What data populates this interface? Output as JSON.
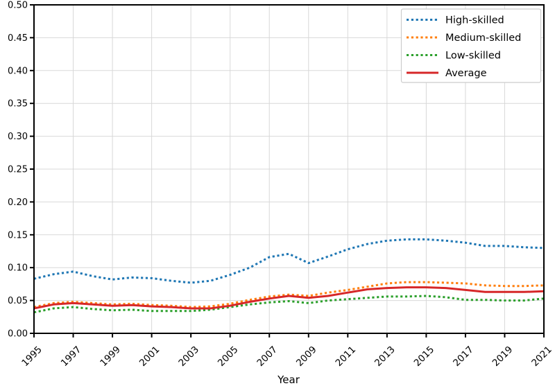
{
  "chart_data": {
    "type": "line",
    "title": "",
    "xlabel": "Year",
    "ylabel": "",
    "xlim": [
      1995,
      2021
    ],
    "ylim": [
      0.0,
      0.5
    ],
    "grid": true,
    "legend_position": "top-right",
    "x_ticks": [
      1995,
      1997,
      1999,
      2001,
      2003,
      2005,
      2007,
      2009,
      2011,
      2013,
      2015,
      2017,
      2019,
      2021
    ],
    "y_ticks": [
      "0.00",
      "0.05",
      "0.10",
      "0.15",
      "0.20",
      "0.25",
      "0.30",
      "0.35",
      "0.40",
      "0.45",
      "0.50"
    ],
    "x": [
      1995,
      1996,
      1997,
      1998,
      1999,
      2000,
      2001,
      2002,
      2003,
      2004,
      2005,
      2006,
      2007,
      2008,
      2009,
      2010,
      2011,
      2012,
      2013,
      2014,
      2015,
      2016,
      2017,
      2018,
      2019,
      2020,
      2021
    ],
    "series": [
      {
        "name": "High-skilled",
        "color": "#1f77b4",
        "style": "dotted",
        "values": [
          0.083,
          0.09,
          0.094,
          0.087,
          0.082,
          0.085,
          0.084,
          0.08,
          0.077,
          0.08,
          0.089,
          0.1,
          0.116,
          0.121,
          0.107,
          0.117,
          0.128,
          0.136,
          0.141,
          0.143,
          0.143,
          0.141,
          0.138,
          0.133,
          0.133,
          0.131,
          0.13
        ]
      },
      {
        "name": "Medium-skilled",
        "color": "#ff7f0e",
        "style": "dotted",
        "values": [
          0.04,
          0.046,
          0.048,
          0.046,
          0.044,
          0.045,
          0.043,
          0.042,
          0.04,
          0.041,
          0.045,
          0.051,
          0.056,
          0.059,
          0.057,
          0.062,
          0.066,
          0.071,
          0.076,
          0.078,
          0.078,
          0.077,
          0.076,
          0.073,
          0.072,
          0.072,
          0.073
        ]
      },
      {
        "name": "Low-skilled",
        "color": "#2ca02c",
        "style": "dotted",
        "values": [
          0.032,
          0.038,
          0.04,
          0.037,
          0.035,
          0.036,
          0.034,
          0.034,
          0.034,
          0.036,
          0.04,
          0.044,
          0.047,
          0.049,
          0.046,
          0.05,
          0.052,
          0.054,
          0.056,
          0.056,
          0.057,
          0.055,
          0.051,
          0.051,
          0.05,
          0.05,
          0.053
        ]
      },
      {
        "name": "Average",
        "color": "#d62728",
        "style": "solid",
        "values": [
          0.038,
          0.044,
          0.046,
          0.044,
          0.042,
          0.043,
          0.041,
          0.04,
          0.038,
          0.038,
          0.042,
          0.048,
          0.053,
          0.057,
          0.054,
          0.057,
          0.062,
          0.067,
          0.069,
          0.07,
          0.07,
          0.069,
          0.066,
          0.063,
          0.063,
          0.063,
          0.064
        ]
      }
    ],
    "colors": {
      "grid": "#d8d8d8",
      "spine": "#000000",
      "text": "#000000",
      "background": "#ffffff"
    }
  }
}
